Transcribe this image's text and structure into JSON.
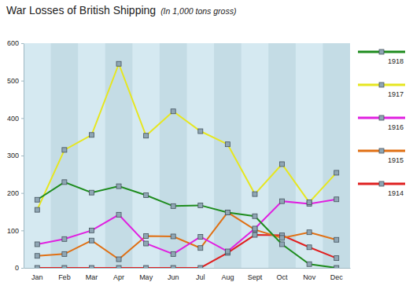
{
  "chart_data": {
    "type": "line",
    "title": "War Losses of British Shipping",
    "subtitle": "(In 1,000 tons gross)",
    "categories": [
      "Jan",
      "Feb",
      "Mar",
      "Apr",
      "May",
      "Jun",
      "Jul",
      "Aug",
      "Sept",
      "Oct",
      "Nov",
      "Dec"
    ],
    "series": [
      {
        "name": "1918",
        "color": "#1e8c1e",
        "values": [
          182,
          229,
          201,
          218,
          194,
          165,
          167,
          148,
          138,
          63,
          10,
          0
        ]
      },
      {
        "name": "1917",
        "color": "#e6e620",
        "values": [
          155,
          315,
          355,
          545,
          353,
          418,
          365,
          330,
          197,
          277,
          175,
          254
        ]
      },
      {
        "name": "1916",
        "color": "#e020e0",
        "values": [
          63,
          77,
          100,
          142,
          65,
          37,
          83,
          44,
          105,
          178,
          171,
          183
        ]
      },
      {
        "name": "1915",
        "color": "#e07014",
        "values": [
          32,
          37,
          73,
          23,
          85,
          84,
          53,
          148,
          102,
          80,
          95,
          75
        ]
      },
      {
        "name": "1914",
        "color": "#e02020",
        "values": [
          0,
          0,
          0,
          0,
          0,
          0,
          0,
          40,
          88,
          87,
          55,
          26
        ]
      }
    ],
    "ylim": [
      0,
      600
    ],
    "yticks": [
      0,
      100,
      200,
      300,
      400,
      500,
      600
    ],
    "grid": false,
    "legend": "right",
    "marker": "square",
    "line_style": "solid"
  }
}
